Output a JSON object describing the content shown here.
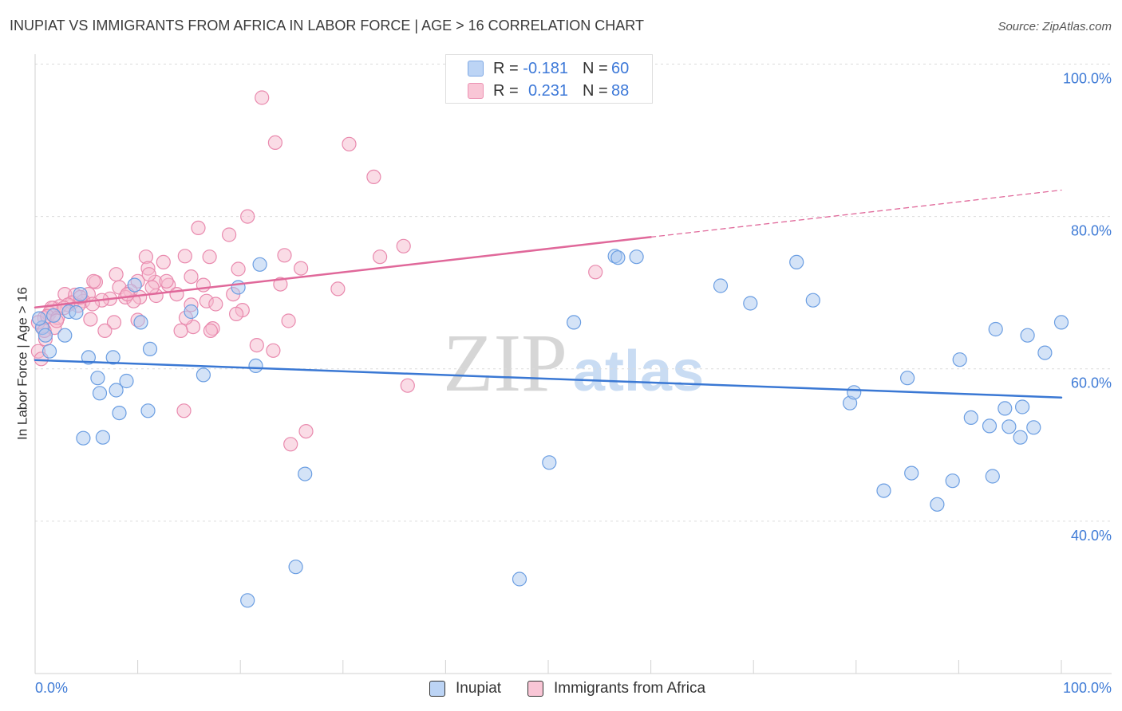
{
  "source": "Source: ZipAtlas.com",
  "watermark": {
    "part1": "ZIP",
    "part2": "atlas"
  },
  "colors": {
    "title_text": "#3b3b3b",
    "tick_label": "#3f7bd6",
    "grid": "#dcdcdc",
    "axis": "#d2d2d2"
  },
  "chart_data": {
    "type": "scatter",
    "title": "INUPIAT VS IMMIGRANTS FROM AFRICA IN LABOR FORCE | AGE > 16 CORRELATION CHART",
    "ylabel": "In Labor Force | Age > 16",
    "xlim": [
      0,
      100
    ],
    "ylim": [
      20,
      101.3
    ],
    "grid": true,
    "legend_position": "top-center",
    "y_ticks": [
      {
        "value": 100,
        "label": "100.0%"
      },
      {
        "value": 80,
        "label": "80.0%"
      },
      {
        "value": 60,
        "label": "60.0%"
      },
      {
        "value": 40,
        "label": "40.0%"
      }
    ],
    "x_ticks": [
      {
        "value": 0,
        "label": "0.0%"
      },
      {
        "value": 100,
        "label": "100.0%"
      }
    ],
    "x_tick_marks": [
      0,
      10,
      20,
      30,
      40,
      50,
      60,
      70,
      80,
      90,
      100
    ],
    "correlation_legend": {
      "r_label": "R =",
      "n_label": "N =",
      "rows": [
        {
          "r": "-0.181",
          "n": "60"
        },
        {
          "r": "0.231",
          "n": "88"
        }
      ]
    },
    "series": [
      {
        "name": "Inupiat",
        "fill": "#a9c8f0",
        "stroke": "#6b9ee2",
        "line": "#3a78d4",
        "points": [
          [
            0.7,
            65.4
          ],
          [
            1.0,
            64.4
          ],
          [
            1.4,
            62.3
          ],
          [
            0.4,
            66.6
          ],
          [
            2.9,
            64.4
          ],
          [
            3.3,
            67.5
          ],
          [
            4.0,
            67.4
          ],
          [
            4.4,
            69.8
          ],
          [
            4.7,
            50.9
          ],
          [
            5.2,
            61.5
          ],
          [
            6.1,
            58.8
          ],
          [
            6.3,
            56.8
          ],
          [
            6.6,
            51.0
          ],
          [
            7.6,
            61.5
          ],
          [
            7.9,
            57.2
          ],
          [
            8.2,
            54.2
          ],
          [
            8.9,
            58.4
          ],
          [
            9.7,
            71.0
          ],
          [
            10.3,
            66.1
          ],
          [
            11.0,
            54.5
          ],
          [
            11.2,
            62.6
          ],
          [
            15.2,
            67.5
          ],
          [
            16.4,
            59.2
          ],
          [
            19.8,
            70.7
          ],
          [
            20.7,
            29.6
          ],
          [
            21.5,
            60.4
          ],
          [
            21.9,
            73.7
          ],
          [
            25.4,
            34.0
          ],
          [
            26.3,
            46.2
          ],
          [
            47.2,
            32.4
          ],
          [
            50.1,
            47.7
          ],
          [
            52.5,
            66.1
          ],
          [
            56.5,
            74.8
          ],
          [
            56.8,
            74.6
          ],
          [
            58.6,
            74.7
          ],
          [
            66.8,
            70.9
          ],
          [
            69.7,
            68.6
          ],
          [
            74.2,
            74.0
          ],
          [
            75.8,
            69.0
          ],
          [
            79.4,
            55.5
          ],
          [
            79.8,
            56.9
          ],
          [
            82.7,
            44.0
          ],
          [
            85.0,
            58.8
          ],
          [
            85.4,
            46.3
          ],
          [
            87.9,
            42.2
          ],
          [
            89.4,
            45.3
          ],
          [
            90.1,
            61.2
          ],
          [
            91.2,
            53.6
          ],
          [
            93.0,
            52.5
          ],
          [
            93.3,
            45.9
          ],
          [
            93.6,
            65.2
          ],
          [
            94.5,
            54.8
          ],
          [
            94.9,
            52.4
          ],
          [
            96.0,
            51.0
          ],
          [
            96.2,
            55.0
          ],
          [
            96.7,
            64.4
          ],
          [
            97.3,
            52.3
          ],
          [
            98.4,
            62.1
          ],
          [
            100.0,
            66.1
          ],
          [
            1.8,
            67.0
          ]
        ]
      },
      {
        "name": "Immigrants from Africa",
        "fill": "#f6b9ce",
        "stroke": "#e98aae",
        "line": "#e0689a",
        "points": [
          [
            22.1,
            95.6
          ],
          [
            23.4,
            89.7
          ],
          [
            30.6,
            89.5
          ],
          [
            33.0,
            85.2
          ],
          [
            20.7,
            80.0
          ],
          [
            15.9,
            78.5
          ],
          [
            18.9,
            77.6
          ],
          [
            35.9,
            76.1
          ],
          [
            33.6,
            74.7
          ],
          [
            24.3,
            74.9
          ],
          [
            17.0,
            74.7
          ],
          [
            14.6,
            74.8
          ],
          [
            10.8,
            74.7
          ],
          [
            12.5,
            74.0
          ],
          [
            25.9,
            73.2
          ],
          [
            19.8,
            73.1
          ],
          [
            11.0,
            73.2
          ],
          [
            7.9,
            72.4
          ],
          [
            15.2,
            72.1
          ],
          [
            54.6,
            72.7
          ],
          [
            5.9,
            71.4
          ],
          [
            11.7,
            71.4
          ],
          [
            10.0,
            71.5
          ],
          [
            13.0,
            71.0
          ],
          [
            23.9,
            71.1
          ],
          [
            16.4,
            71.0
          ],
          [
            8.2,
            70.7
          ],
          [
            29.5,
            70.5
          ],
          [
            9.3,
            70.2
          ],
          [
            13.8,
            69.8
          ],
          [
            11.8,
            69.6
          ],
          [
            19.3,
            69.8
          ],
          [
            5.2,
            69.8
          ],
          [
            2.9,
            69.8
          ],
          [
            3.9,
            69.7
          ],
          [
            7.3,
            69.2
          ],
          [
            10.2,
            69.4
          ],
          [
            6.5,
            69.0
          ],
          [
            8.8,
            69.4
          ],
          [
            16.7,
            68.9
          ],
          [
            4.7,
            68.9
          ],
          [
            9.6,
            68.9
          ],
          [
            3.6,
            68.7
          ],
          [
            15.2,
            68.4
          ],
          [
            1.8,
            68.0
          ],
          [
            2.4,
            68.2
          ],
          [
            4.2,
            68.3
          ],
          [
            20.2,
            67.7
          ],
          [
            19.6,
            67.2
          ],
          [
            1.4,
            67.3
          ],
          [
            0.9,
            66.7
          ],
          [
            10.0,
            66.4
          ],
          [
            24.7,
            66.3
          ],
          [
            5.4,
            66.5
          ],
          [
            7.7,
            66.1
          ],
          [
            15.4,
            65.5
          ],
          [
            17.3,
            65.3
          ],
          [
            17.1,
            65.0
          ],
          [
            14.2,
            65.0
          ],
          [
            6.8,
            65.0
          ],
          [
            0.7,
            65.4
          ],
          [
            1.9,
            65.4
          ],
          [
            0.3,
            66.1
          ],
          [
            1.0,
            63.9
          ],
          [
            0.3,
            62.3
          ],
          [
            0.6,
            61.3
          ],
          [
            21.6,
            63.1
          ],
          [
            23.2,
            62.4
          ],
          [
            36.3,
            57.8
          ],
          [
            14.5,
            54.5
          ],
          [
            26.4,
            51.8
          ],
          [
            24.9,
            50.1
          ],
          [
            1.6,
            68.0
          ],
          [
            4.4,
            69.4
          ],
          [
            3.2,
            68.4
          ],
          [
            1.2,
            66.9
          ],
          [
            2.2,
            66.7
          ],
          [
            5.6,
            68.5
          ],
          [
            9.0,
            69.8
          ],
          [
            11.4,
            70.7
          ],
          [
            12.8,
            71.5
          ],
          [
            17.6,
            68.5
          ],
          [
            14.7,
            66.7
          ],
          [
            5.7,
            71.5
          ],
          [
            0.9,
            65.0
          ],
          [
            2.8,
            68.0
          ],
          [
            11.1,
            72.4
          ],
          [
            2.1,
            66.3
          ]
        ]
      }
    ],
    "trend_lines": [
      {
        "series_index": 0,
        "x_start": 0,
        "y_start": 61.15,
        "x_end": 100,
        "y_end": 56.23,
        "dashed": false
      },
      {
        "series_index": 1,
        "x_start": 0,
        "y_start": 68.06,
        "x_end": 60,
        "y_end": 77.3,
        "dashed": false
      },
      {
        "series_index": 1,
        "x_start": 60,
        "y_start": 77.3,
        "x_end": 100,
        "y_end": 83.46,
        "dashed": true
      }
    ]
  }
}
